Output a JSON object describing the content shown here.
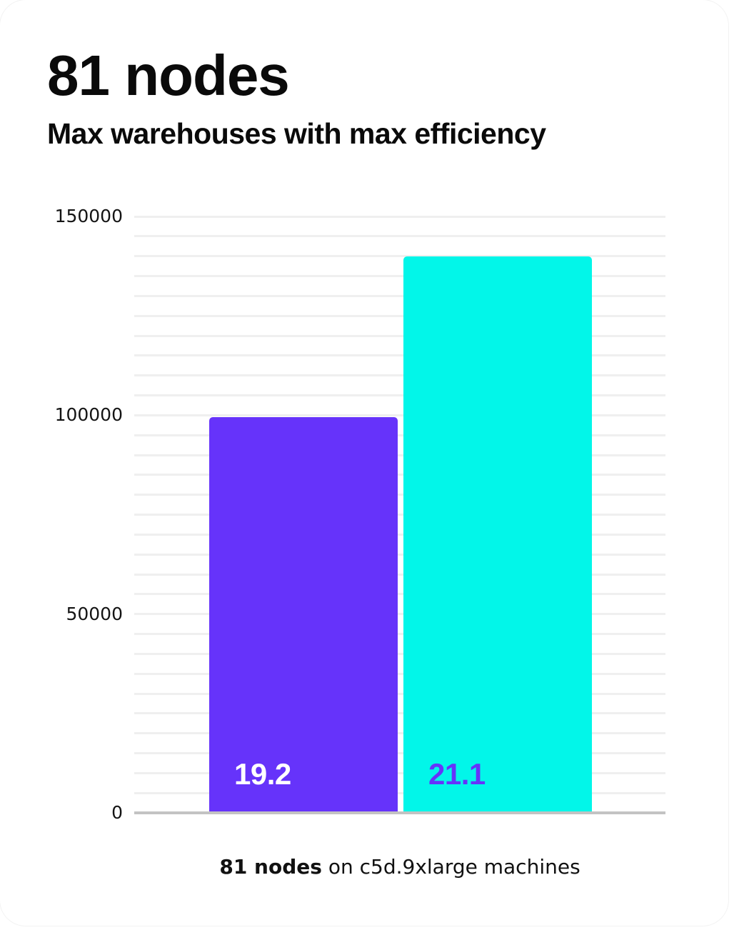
{
  "header": {
    "title": "81 nodes",
    "subtitle": "Max warehouses with max efficiency"
  },
  "caption": {
    "bold": "81 nodes",
    "rest": " on c5d.9xlarge machines"
  },
  "chart_data": {
    "type": "bar",
    "title": "81 nodes",
    "subtitle": "Max warehouses with max efficiency",
    "categories": [
      "19.2",
      "21.1"
    ],
    "values": [
      99500,
      140000
    ],
    "bar_colors": [
      "#6633fa",
      "#02f6e9"
    ],
    "bar_label_colors": [
      "#ffffff",
      "#6633fa"
    ],
    "ylim": [
      0,
      150000
    ],
    "ytick_interval": 50000,
    "yticks": [
      {
        "value": 0,
        "label": "0"
      },
      {
        "value": 50000,
        "label": "50000"
      },
      {
        "value": 100000,
        "label": "100000"
      },
      {
        "value": 150000,
        "label": "150000"
      }
    ],
    "minor_grid_interval": 5000,
    "grid": true,
    "legend": "none",
    "xlabel": "81 nodes on c5d.9xlarge machines",
    "ylabel": ""
  },
  "colors": {
    "bar_purple": "#6633fa",
    "bar_cyan": "#02f6e9",
    "gridline": "#efefef",
    "axis_line": "#c3c3c3",
    "text": "#0a0a0a",
    "card_background": "#ffffff"
  }
}
